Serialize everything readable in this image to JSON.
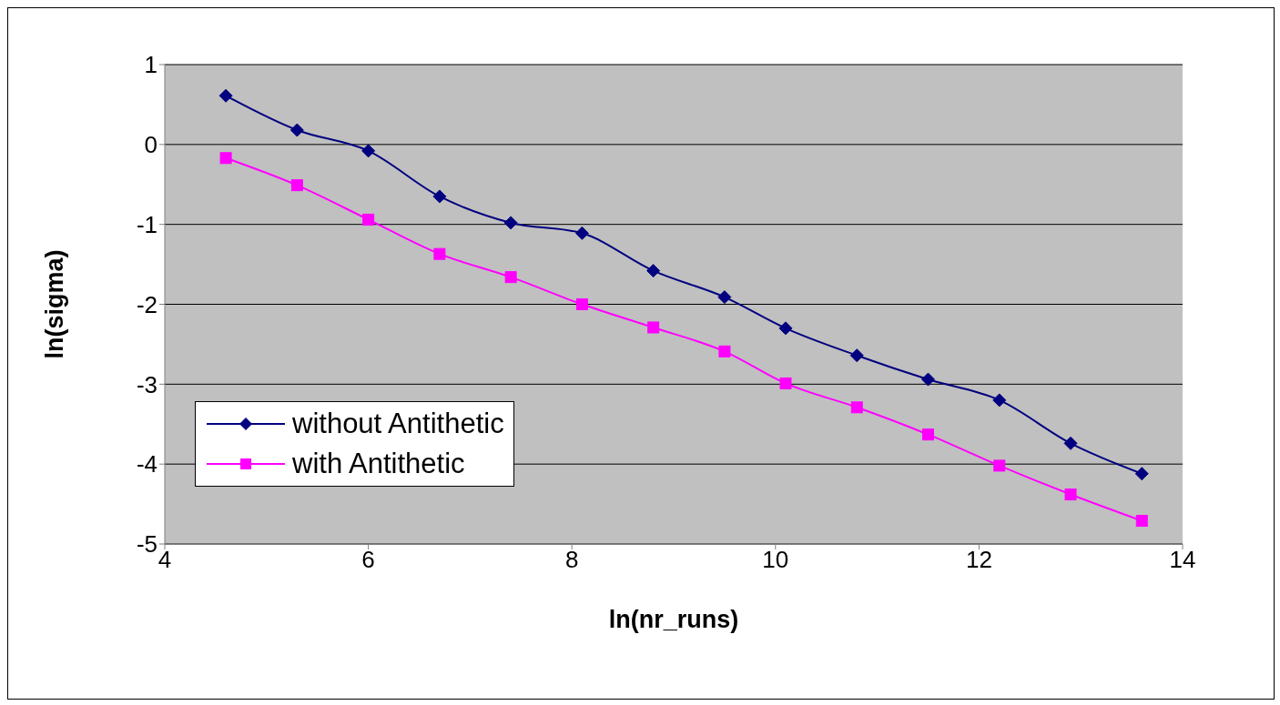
{
  "chart_data": {
    "type": "line",
    "xlabel": "ln(nr_runs)",
    "ylabel": "ln(sigma)",
    "x": [
      4.6,
      5.3,
      6.0,
      6.7,
      7.4,
      8.1,
      8.8,
      9.5,
      10.1,
      10.8,
      11.5,
      12.2,
      12.9,
      13.6
    ],
    "series": [
      {
        "name": "without Antithetic",
        "color": "#000080",
        "marker": "diamond",
        "values": [
          0.61,
          0.18,
          -0.08,
          -0.65,
          -0.98,
          -1.11,
          -1.58,
          -1.91,
          -2.3,
          -2.64,
          -2.94,
          -3.2,
          -3.74,
          -4.12
        ]
      },
      {
        "name": "with Antithetic",
        "color": "#ff00ff",
        "marker": "square",
        "values": [
          -0.17,
          -0.51,
          -0.94,
          -1.37,
          -1.66,
          -2.0,
          -2.29,
          -2.59,
          -2.99,
          -3.29,
          -3.63,
          -4.02,
          -4.38,
          -4.71
        ]
      }
    ],
    "xlim": [
      4,
      14
    ],
    "xticks": [
      4,
      6,
      8,
      10,
      12,
      14
    ],
    "ylim": [
      -5,
      1
    ],
    "yticks": [
      -5,
      -4,
      -3,
      -2,
      -1,
      0,
      1
    ],
    "grid": "y",
    "legend": "bottom left"
  }
}
